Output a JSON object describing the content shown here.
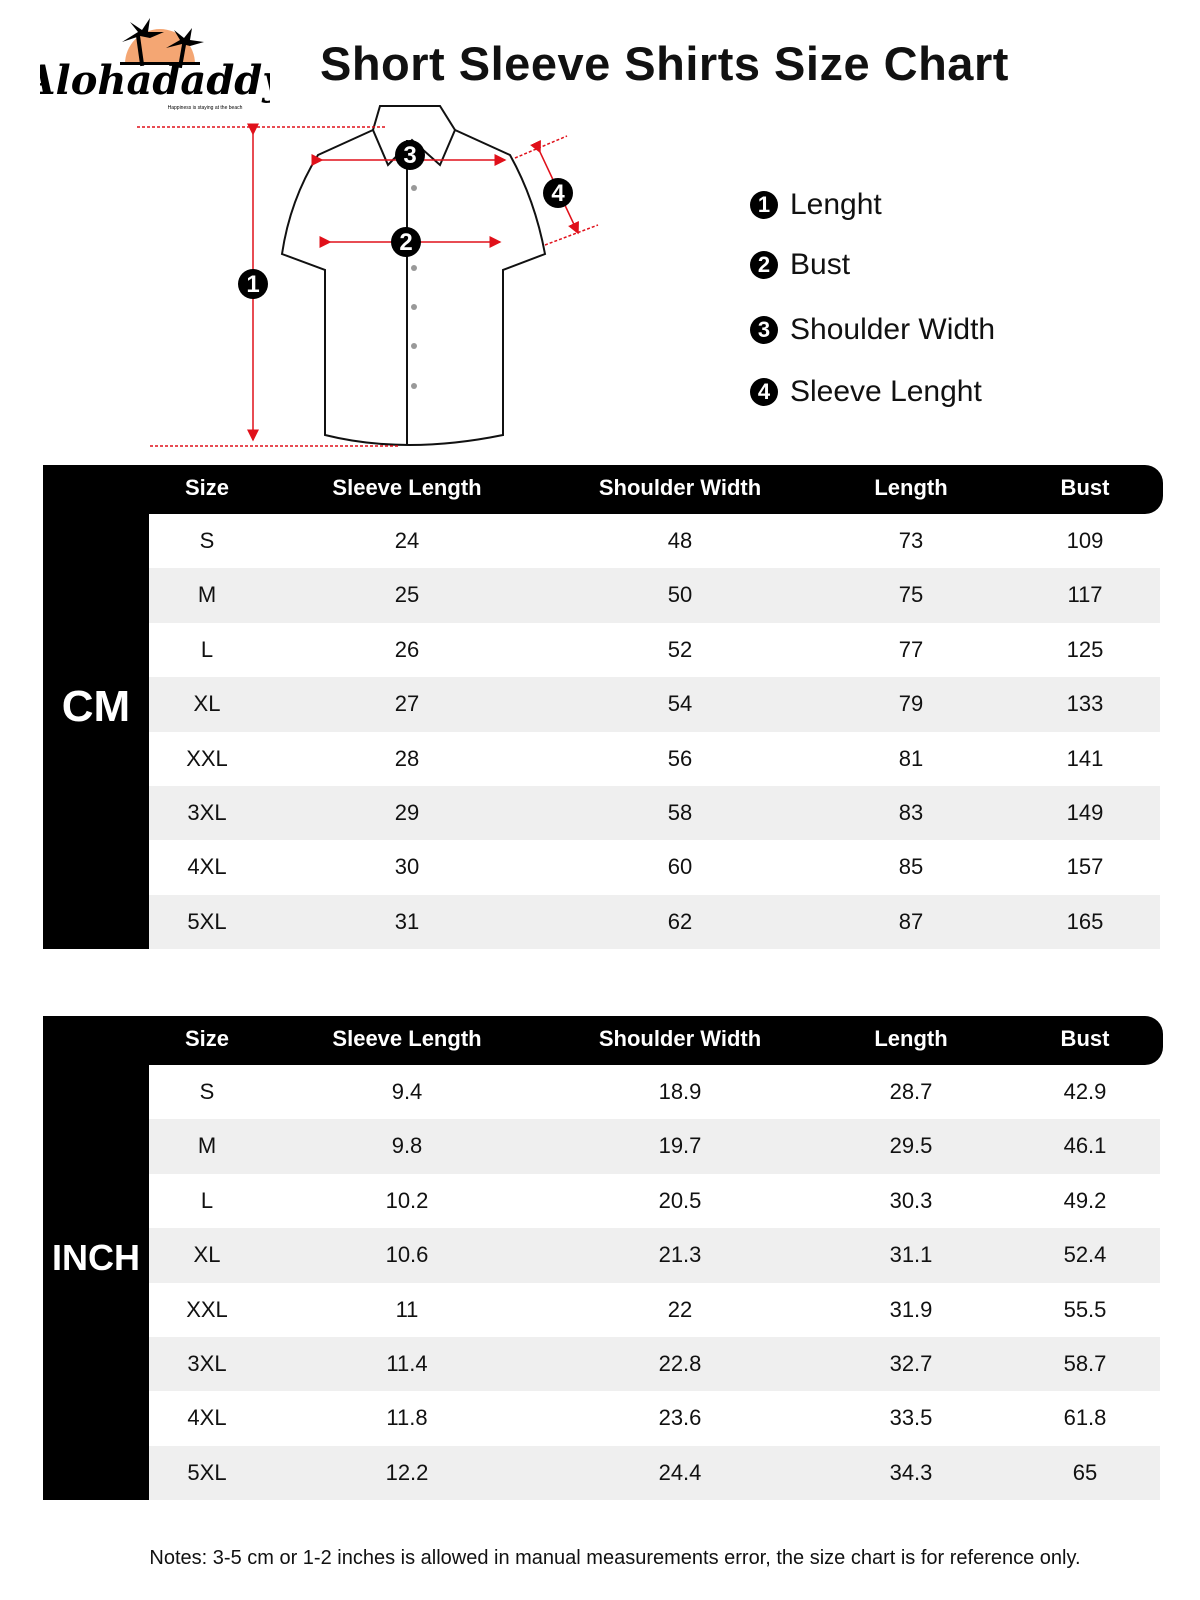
{
  "header": {
    "title": "Short Sleeve Shirts Size Chart",
    "brand": "Alohadaddy",
    "brand_tagline": "Happiness is staying at the beach"
  },
  "diagram": {
    "markers": [
      "1",
      "2",
      "3",
      "4"
    ],
    "accent_color": "#e0101a"
  },
  "legend": [
    {
      "num": "1",
      "label": "Lenght"
    },
    {
      "num": "2",
      "label": "Bust"
    },
    {
      "num": "3",
      "label": "Shoulder Width"
    },
    {
      "num": "4",
      "label": "Sleeve Lenght"
    }
  ],
  "columns": [
    "Size",
    "Sleeve Length",
    "Shoulder Width",
    "Length",
    "Bust"
  ],
  "tables": [
    {
      "unit": "CM",
      "rows": [
        [
          "S",
          "24",
          "48",
          "73",
          "109"
        ],
        [
          "M",
          "25",
          "50",
          "75",
          "117"
        ],
        [
          "L",
          "26",
          "52",
          "77",
          "125"
        ],
        [
          "XL",
          "27",
          "54",
          "79",
          "133"
        ],
        [
          "XXL",
          "28",
          "56",
          "81",
          "141"
        ],
        [
          "3XL",
          "29",
          "58",
          "83",
          "149"
        ],
        [
          "4XL",
          "30",
          "60",
          "85",
          "157"
        ],
        [
          "5XL",
          "31",
          "62",
          "87",
          "165"
        ]
      ]
    },
    {
      "unit": "INCH",
      "rows": [
        [
          "S",
          "9.4",
          "18.9",
          "28.7",
          "42.9"
        ],
        [
          "M",
          "9.8",
          "19.7",
          "29.5",
          "46.1"
        ],
        [
          "L",
          "10.2",
          "20.5",
          "30.3",
          "49.2"
        ],
        [
          "XL",
          "10.6",
          "21.3",
          "31.1",
          "52.4"
        ],
        [
          "XXL",
          "11",
          "22",
          "31.9",
          "55.5"
        ],
        [
          "3XL",
          "11.4",
          "22.8",
          "32.7",
          "58.7"
        ],
        [
          "4XL",
          "11.8",
          "23.6",
          "33.5",
          "61.8"
        ],
        [
          "5XL",
          "12.2",
          "24.4",
          "34.3",
          "65"
        ]
      ]
    }
  ],
  "notes": "Notes: 3-5 cm or 1-2 inches is allowed in manual measurements error, the size chart is for reference only."
}
